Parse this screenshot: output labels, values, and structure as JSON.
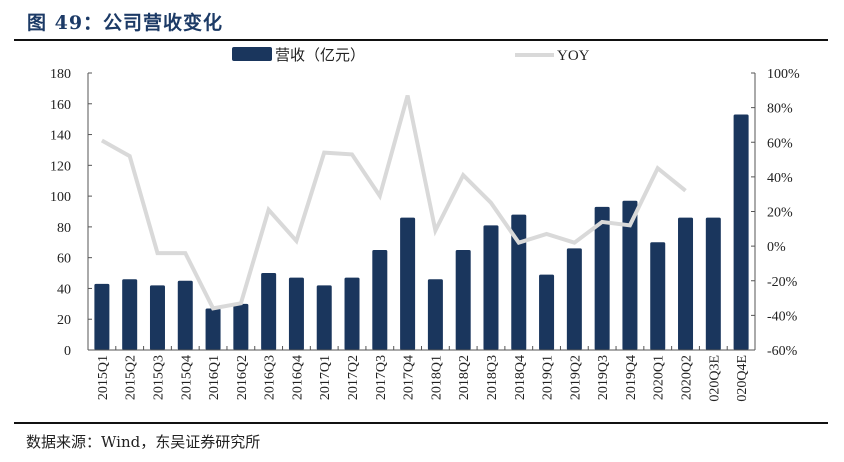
{
  "header": {
    "title": "图 49：公司营收变化"
  },
  "footer": {
    "source": "数据来源：Wind，东吴证券研究所"
  },
  "legend": {
    "bar_label": "营收（亿元）",
    "line_label": "YOY"
  },
  "colors": {
    "bar": "#1a365d",
    "line": "#d9d9d9",
    "title": "#1c3a66",
    "axis": "#555555"
  },
  "chart_data": {
    "type": "bar",
    "title": "图 49：公司营收变化",
    "xlabel": "",
    "ylabel": "营收（亿元）",
    "y2label": "YOY",
    "ylim": [
      0,
      180
    ],
    "y2lim": [
      -60,
      100
    ],
    "yticks": [
      "0",
      "20",
      "40",
      "60",
      "80",
      "100",
      "120",
      "140",
      "160",
      "180"
    ],
    "y2ticks": [
      "-60%",
      "-40%",
      "-20%",
      "0%",
      "20%",
      "40%",
      "60%",
      "80%",
      "100%"
    ],
    "legend_position": "top",
    "grid": false,
    "categories": [
      "2015Q1",
      "2015Q2",
      "2015Q3",
      "2015Q4",
      "2016Q1",
      "2016Q2",
      "2016Q3",
      "2016Q4",
      "2017Q1",
      "2017Q2",
      "2017Q3",
      "2017Q4",
      "2018Q1",
      "2018Q2",
      "2018Q3",
      "2018Q4",
      "2019Q1",
      "2019Q2",
      "2019Q3",
      "2019Q4",
      "2020Q1",
      "2020Q2",
      "2020Q3E",
      "2020Q4E"
    ],
    "category_labels_visible": [
      "2015Q1",
      "2015Q2",
      "2015Q3",
      "2015Q4",
      "2016Q1",
      "2016Q2",
      "2016Q3",
      "2016Q4",
      "2017Q1",
      "2017Q2",
      "2017Q3",
      "2017Q4",
      "2018Q1",
      "2018Q2",
      "2018Q3",
      "2018Q4",
      "2019Q1",
      "2019Q2",
      "2019Q3",
      "2019Q4",
      "2020Q1",
      "2020Q2",
      "020Q3E",
      "020Q4E"
    ],
    "series": [
      {
        "name": "营收（亿元）",
        "type": "bar",
        "axis": "left",
        "values": [
          43,
          46,
          42,
          45,
          27,
          30,
          50,
          47,
          42,
          47,
          65,
          86,
          46,
          65,
          81,
          88,
          49,
          66,
          93,
          97,
          70,
          86,
          86,
          153
        ]
      },
      {
        "name": "YOY",
        "type": "line",
        "axis": "right",
        "unit": "%",
        "values": [
          61,
          52,
          -4,
          -4,
          -36,
          -33,
          21,
          3,
          54,
          53,
          29,
          87,
          9,
          41,
          25,
          2,
          7,
          2,
          14,
          12,
          45,
          32,
          null,
          null
        ]
      }
    ]
  }
}
